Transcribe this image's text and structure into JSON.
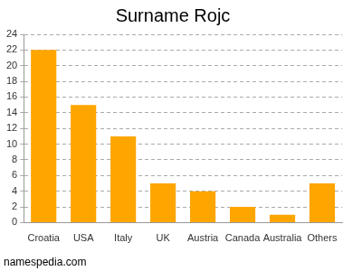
{
  "chart_data": {
    "type": "bar",
    "title": "Surname Rojc",
    "categories": [
      "Croatia",
      "USA",
      "Italy",
      "UK",
      "Austria",
      "Canada",
      "Australia",
      "Others"
    ],
    "values": [
      22,
      15,
      11,
      5,
      4,
      2,
      1,
      5
    ],
    "color": "#ffa500",
    "ylim": [
      0,
      24
    ],
    "yticks": [
      0,
      2,
      4,
      6,
      8,
      10,
      12,
      14,
      16,
      18,
      20,
      22,
      24
    ],
    "grid": true,
    "source": "namespedia.com"
  }
}
